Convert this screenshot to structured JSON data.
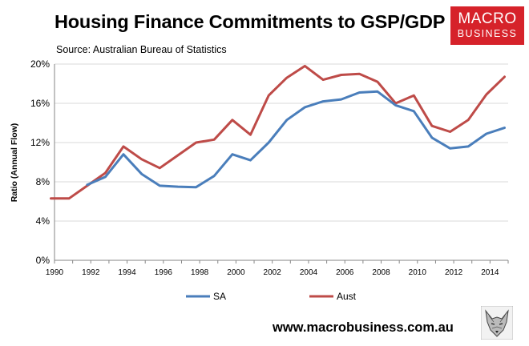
{
  "header": {
    "title": "Housing Finance Commitments to GSP/GDP",
    "source": "Source: Australian Bureau of Statistics"
  },
  "logo": {
    "line1": "MACRO",
    "line2": "BUSINESS"
  },
  "footer": {
    "website": "www.macrobusiness.com.au"
  },
  "colors": {
    "sa": "#4a7ebb",
    "aust": "#be4b48",
    "grid": "#d9d9d9",
    "logo": "#d6222a"
  },
  "chart_data": {
    "type": "line",
    "title": "Housing Finance Commitments to GSP/GDP",
    "xlabel": "",
    "ylabel": "Ratio (Annual Flow)",
    "xlim": [
      1990,
      2015
    ],
    "ylim": [
      0,
      20
    ],
    "xticks": [
      1990,
      1992,
      1994,
      1996,
      1998,
      2000,
      2002,
      2004,
      2006,
      2008,
      2010,
      2012,
      2014
    ],
    "yticks": [
      0,
      4,
      8,
      12,
      16,
      20
    ],
    "ytick_labels": [
      "0%",
      "4%",
      "8%",
      "12%",
      "16%",
      "20%"
    ],
    "legend_position": "bottom",
    "series": [
      {
        "name": "SA",
        "x": [
          1991.8,
          1992.8,
          1993.8,
          1994.8,
          1995.8,
          1996.8,
          1997.8,
          1998.8,
          1999.8,
          2000.8,
          2001.8,
          2002.8,
          2003.8,
          2004.8,
          2005.8,
          2006.8,
          2007.8,
          2008.8,
          2009.8,
          2010.8,
          2011.8,
          2012.8,
          2013.8,
          2014.8
        ],
        "values": [
          7.7,
          8.5,
          10.8,
          8.8,
          7.6,
          7.5,
          7.45,
          8.6,
          10.8,
          10.2,
          12.0,
          14.3,
          15.6,
          16.2,
          16.4,
          17.1,
          17.2,
          15.8,
          15.2,
          12.5,
          11.4,
          11.6,
          12.9,
          13.5
        ]
      },
      {
        "name": "Aust",
        "x": [
          1989.8,
          1990.8,
          1991.8,
          1992.8,
          1993.8,
          1994.8,
          1995.8,
          1996.8,
          1997.8,
          1998.8,
          1999.8,
          2000.8,
          2001.8,
          2002.8,
          2003.8,
          2004.8,
          2005.8,
          2006.8,
          2007.8,
          2008.8,
          2009.8,
          2010.8,
          2011.8,
          2012.8,
          2013.8,
          2014.8
        ],
        "values": [
          6.3,
          6.3,
          7.6,
          8.9,
          11.6,
          10.3,
          9.4,
          10.7,
          12.0,
          12.3,
          14.3,
          12.8,
          16.8,
          18.6,
          19.8,
          18.4,
          18.9,
          19.0,
          18.2,
          16.0,
          16.8,
          13.7,
          13.1,
          14.3,
          16.9,
          18.7
        ]
      }
    ]
  }
}
